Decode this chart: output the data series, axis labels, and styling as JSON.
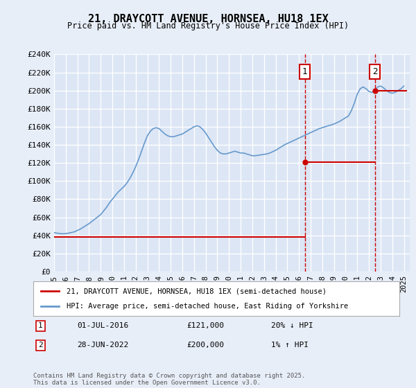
{
  "title": "21, DRAYCOTT AVENUE, HORNSEA, HU18 1EX",
  "subtitle": "Price paid vs. HM Land Registry's House Price Index (HPI)",
  "xlabel": "",
  "ylabel_ticks": [
    "£0",
    "£20K",
    "£40K",
    "£60K",
    "£80K",
    "£100K",
    "£120K",
    "£140K",
    "£160K",
    "£180K",
    "£200K",
    "£220K",
    "£240K"
  ],
  "ylim": [
    0,
    240000
  ],
  "xlim_start": 1995,
  "xlim_end": 2025.5,
  "sale1_date": 2016.5,
  "sale1_price": 121000,
  "sale2_date": 2022.5,
  "sale2_price": 200000,
  "sale1_label": "01-JUL-2016",
  "sale2_label": "28-JUN-2022",
  "sale1_pct": "20% ↓ HPI",
  "sale2_pct": "1% ↑ HPI",
  "red_color": "#cc0000",
  "blue_color": "#6699cc",
  "bg_color": "#e8eef8",
  "plot_bg": "#dce6f5",
  "grid_color": "#ffffff",
  "legend_line1": "21, DRAYCOTT AVENUE, HORNSEA, HU18 1EX (semi-detached house)",
  "legend_line2": "HPI: Average price, semi-detached house, East Riding of Yorkshire",
  "footnote": "Contains HM Land Registry data © Crown copyright and database right 2025.\nThis data is licensed under the Open Government Licence v3.0.",
  "hpi_years": [
    1995.0,
    1995.25,
    1995.5,
    1995.75,
    1996.0,
    1996.25,
    1996.5,
    1996.75,
    1997.0,
    1997.25,
    1997.5,
    1997.75,
    1998.0,
    1998.25,
    1998.5,
    1998.75,
    1999.0,
    1999.25,
    1999.5,
    1999.75,
    2000.0,
    2000.25,
    2000.5,
    2000.75,
    2001.0,
    2001.25,
    2001.5,
    2001.75,
    2002.0,
    2002.25,
    2002.5,
    2002.75,
    2003.0,
    2003.25,
    2003.5,
    2003.75,
    2004.0,
    2004.25,
    2004.5,
    2004.75,
    2005.0,
    2005.25,
    2005.5,
    2005.75,
    2006.0,
    2006.25,
    2006.5,
    2006.75,
    2007.0,
    2007.25,
    2007.5,
    2007.75,
    2008.0,
    2008.25,
    2008.5,
    2008.75,
    2009.0,
    2009.25,
    2009.5,
    2009.75,
    2010.0,
    2010.25,
    2010.5,
    2010.75,
    2011.0,
    2011.25,
    2011.5,
    2011.75,
    2012.0,
    2012.25,
    2012.5,
    2012.75,
    2013.0,
    2013.25,
    2013.5,
    2013.75,
    2014.0,
    2014.25,
    2014.5,
    2014.75,
    2015.0,
    2015.25,
    2015.5,
    2015.75,
    2016.0,
    2016.25,
    2016.5,
    2016.75,
    2017.0,
    2017.25,
    2017.5,
    2017.75,
    2018.0,
    2018.25,
    2018.5,
    2018.75,
    2019.0,
    2019.25,
    2019.5,
    2019.75,
    2020.0,
    2020.25,
    2020.5,
    2020.75,
    2021.0,
    2021.25,
    2021.5,
    2021.75,
    2022.0,
    2022.25,
    2022.5,
    2022.75,
    2023.0,
    2023.25,
    2023.5,
    2023.75,
    2024.0,
    2024.25,
    2024.5,
    2024.75,
    2025.0
  ],
  "hpi_values": [
    43000,
    42500,
    42000,
    41800,
    42000,
    42500,
    43200,
    44000,
    45500,
    47000,
    49000,
    51000,
    53000,
    55500,
    58000,
    60500,
    63000,
    67000,
    71000,
    76000,
    80000,
    84000,
    88000,
    91000,
    94000,
    98000,
    103000,
    109000,
    116000,
    124000,
    133000,
    142000,
    150000,
    155000,
    158000,
    159000,
    158000,
    155000,
    152000,
    150000,
    149000,
    149000,
    150000,
    151000,
    152000,
    154000,
    156000,
    158000,
    160000,
    161000,
    160000,
    157000,
    153000,
    148000,
    143000,
    138000,
    134000,
    131000,
    130000,
    130000,
    131000,
    132000,
    133000,
    132000,
    131000,
    131000,
    130000,
    129000,
    128000,
    128000,
    128500,
    129000,
    129500,
    130000,
    131000,
    132500,
    134000,
    136000,
    138000,
    140000,
    141500,
    143000,
    144500,
    146000,
    147500,
    149000,
    150500,
    152000,
    153500,
    155000,
    156500,
    158000,
    159000,
    160000,
    161000,
    162000,
    163000,
    164500,
    166000,
    168000,
    170000,
    172000,
    178000,
    186000,
    196000,
    202000,
    204000,
    202000,
    199000,
    198000,
    200000,
    204000,
    205000,
    203000,
    200000,
    198000,
    197000,
    198000,
    200000,
    202000,
    205000
  ],
  "red_years_before": [
    1995.0,
    2016.5
  ],
  "red_values_before": [
    38000,
    38000
  ],
  "red_years_sale1_to_sale2": [
    2016.5,
    2022.5
  ],
  "red_values_sale1_to_sale2": [
    121000,
    121000
  ],
  "red_years_after": [
    2022.5,
    2025.2
  ],
  "red_values_after": [
    200000,
    200000
  ]
}
